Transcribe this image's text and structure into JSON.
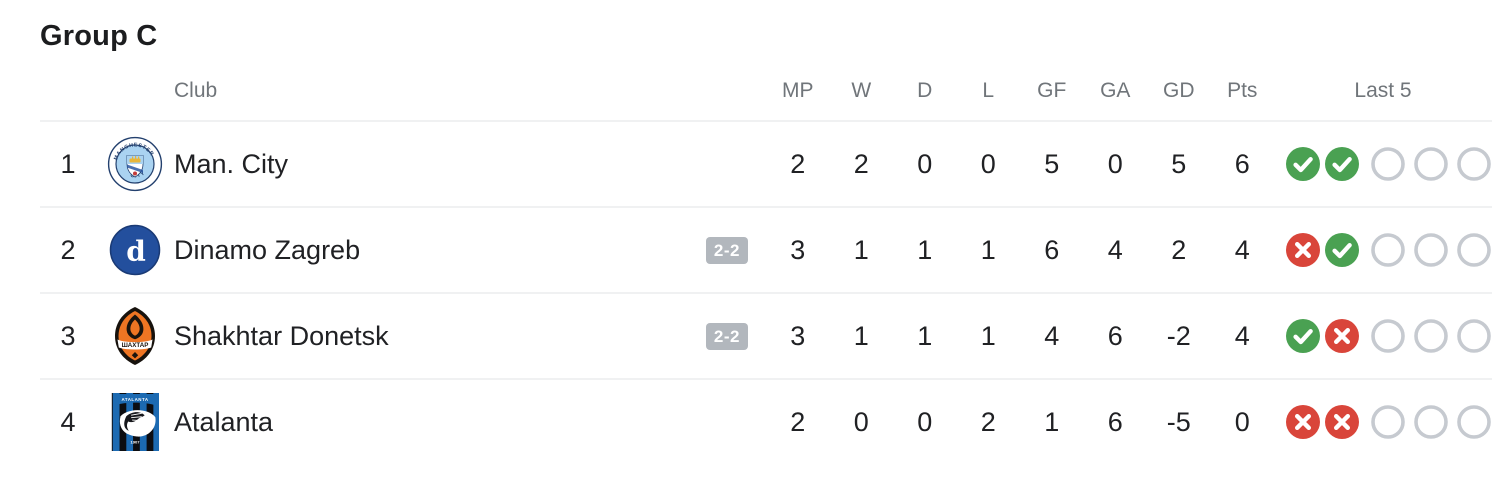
{
  "title": "Group C",
  "table": {
    "headers": {
      "club": "Club",
      "mp": "MP",
      "w": "W",
      "d": "D",
      "l": "L",
      "gf": "GF",
      "ga": "GA",
      "gd": "GD",
      "pts": "Pts",
      "last5": "Last 5"
    },
    "rows": [
      {
        "pos": "1",
        "club": "Man. City",
        "logo": "man-city",
        "score_badge": null,
        "mp": "2",
        "w": "2",
        "d": "0",
        "l": "0",
        "gf": "5",
        "ga": "0",
        "gd": "5",
        "pts": "6",
        "last5": [
          "win",
          "win",
          "empty",
          "empty",
          "empty"
        ]
      },
      {
        "pos": "2",
        "club": "Dinamo Zagreb",
        "logo": "dinamo-zagreb",
        "score_badge": "2-2",
        "mp": "3",
        "w": "1",
        "d": "1",
        "l": "1",
        "gf": "6",
        "ga": "4",
        "gd": "2",
        "pts": "4",
        "last5": [
          "loss",
          "win",
          "empty",
          "empty",
          "empty"
        ]
      },
      {
        "pos": "3",
        "club": "Shakhtar Donetsk",
        "logo": "shakhtar-donetsk",
        "score_badge": "2-2",
        "mp": "3",
        "w": "1",
        "d": "1",
        "l": "1",
        "gf": "4",
        "ga": "6",
        "gd": "-2",
        "pts": "4",
        "last5": [
          "win",
          "loss",
          "empty",
          "empty",
          "empty"
        ]
      },
      {
        "pos": "4",
        "club": "Atalanta",
        "logo": "atalanta",
        "score_badge": null,
        "mp": "2",
        "w": "0",
        "d": "0",
        "l": "2",
        "gf": "1",
        "ga": "6",
        "gd": "-5",
        "pts": "0",
        "last5": [
          "loss",
          "loss",
          "empty",
          "empty",
          "empty"
        ]
      }
    ]
  },
  "legend": {
    "win_icon": "green circle with white check",
    "loss_icon": "red circle with white x",
    "empty_icon": "gray outlined circle (upcoming match)"
  },
  "colors": {
    "win": "#4aa152",
    "loss": "#d9453a",
    "empty_border": "#c6cad0",
    "badge_bg": "#b2b7bd",
    "header_text": "#70757a",
    "text": "#202124",
    "divider": "#f0f1f2",
    "title_text": "#1c1d1f"
  }
}
